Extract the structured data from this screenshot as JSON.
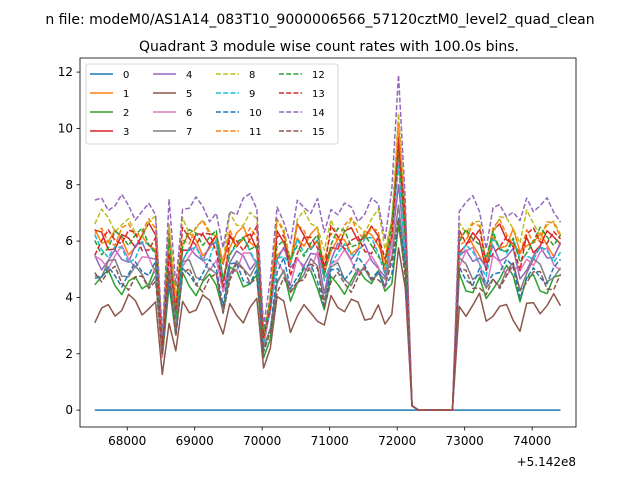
{
  "chart_data": {
    "type": "line",
    "suptitle": "n file: modeM0/AS1A14_083T10_9000006566_57120cztM0_level2_quad_clean",
    "title": "Quadrant 3 module wise count rates with 100.0s bins.",
    "xlabel": "",
    "ylabel": "",
    "x_offset_label": "+5.142e8",
    "xlim": [
      67300,
      74650
    ],
    "ylim": [
      -0.6,
      12.5
    ],
    "x_ticks": [
      68000,
      69000,
      70000,
      71000,
      72000,
      73000,
      74000
    ],
    "x_tick_labels": [
      "68000",
      "69000",
      "70000",
      "71000",
      "72000",
      "73000",
      "74000"
    ],
    "y_ticks": [
      0,
      2,
      4,
      6,
      8,
      10,
      12
    ],
    "y_tick_labels": [
      "0",
      "2",
      "4",
      "6",
      "8",
      "10",
      "12"
    ],
    "x_start": 67520,
    "x_step": 100,
    "grid": false,
    "legend_position": "top-left",
    "series": [
      {
        "name": "0",
        "color": "#1f77b4",
        "dash": false,
        "mode": "flat",
        "level": 0
      },
      {
        "name": "1",
        "color": "#ff7f0e",
        "dash": false,
        "base": 6.0
      },
      {
        "name": "2",
        "color": "#2ca02c",
        "dash": false,
        "base": 4.6
      },
      {
        "name": "3",
        "color": "#d62728",
        "dash": false,
        "base": 6.1
      },
      {
        "name": "4",
        "color": "#9467bd",
        "dash": false,
        "base": 5.5
      },
      {
        "name": "5",
        "color": "#8c564b",
        "dash": false,
        "base": 3.6
      },
      {
        "name": "6",
        "color": "#e377c2",
        "dash": false,
        "base": 5.3
      },
      {
        "name": "7",
        "color": "#7f7f7f",
        "dash": false,
        "base": 4.9
      },
      {
        "name": "8",
        "color": "#bcbd22",
        "dash": true,
        "base": 6.6
      },
      {
        "name": "9",
        "color": "#17becf",
        "dash": true,
        "base": 5.7
      },
      {
        "name": "10",
        "color": "#1f77b4",
        "dash": true,
        "base": 4.9
      },
      {
        "name": "11",
        "color": "#ff7f0e",
        "dash": true,
        "base": 6.3
      },
      {
        "name": "12",
        "color": "#2ca02c",
        "dash": true,
        "base": 6.0
      },
      {
        "name": "13",
        "color": "#d62728",
        "dash": true,
        "base": 6.0
      },
      {
        "name": "14",
        "color": "#9467bd",
        "dash": true,
        "base": 7.2
      },
      {
        "name": "15",
        "color": "#8c564b",
        "dash": true,
        "base": 4.7
      }
    ]
  }
}
